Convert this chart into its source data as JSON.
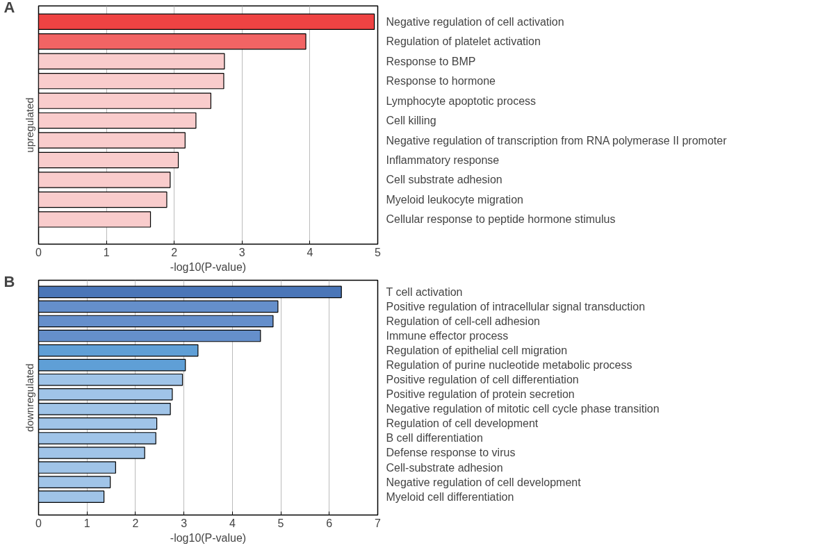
{
  "chart_data": [
    {
      "type": "bar",
      "orientation": "horizontal",
      "title": "A",
      "ylabel": "upregulated",
      "xlabel": "-log10(P-value)",
      "categories": [
        "Negative regulation of cell activation",
        "Regulation of platelet activation",
        "Response to BMP",
        "Response to hormone",
        "Lymphocyte apoptotic process",
        "Cell killing",
        "Negative regulation of transcription from RNA    polymerase II promoter",
        "Inflammatory response",
        "Cell substrate adhesion",
        "Myeloid leukocyte migration",
        "Cellular response to peptide hormone stimulus"
      ],
      "values": [
        4.95,
        3.94,
        2.74,
        2.73,
        2.54,
        2.32,
        2.16,
        2.06,
        1.94,
        1.89,
        1.65
      ],
      "colors": [
        "#ef4343",
        "#f26464",
        "#f9cccc",
        "#f9cccc",
        "#f9cccc",
        "#f9cccc",
        "#f9cccc",
        "#f9cccc",
        "#f9cccc",
        "#f9cccc",
        "#f9cccc"
      ],
      "xlim": [
        0,
        5
      ],
      "xticks": [
        0,
        1,
        2,
        3,
        4,
        5
      ],
      "grid": "x"
    },
    {
      "type": "bar",
      "orientation": "horizontal",
      "title": "B",
      "ylabel": "downregulated",
      "xlabel": "-log10(P-value)",
      "categories": [
        "T cell activation",
        "Positive regulation of intracellular signal transduction",
        "Regulation of cell-cell adhesion",
        "Immune effector process",
        "Regulation of epithelial cell migration",
        "Regulation of purine nucleotide metabolic process",
        "Positive regulation of cell differentiation",
        "Positive regulation of protein secretion",
        "Negative regulation of mitotic cell cycle phase transition",
        "Regulation of cell development",
        "B cell differentiation",
        "Defense response to virus",
        "Cell-substrate adhesion",
        "Negative regulation of cell development",
        "Myeloid cell differentiation"
      ],
      "values": [
        6.25,
        4.94,
        4.84,
        4.58,
        3.29,
        3.03,
        2.97,
        2.76,
        2.72,
        2.44,
        2.42,
        2.19,
        1.59,
        1.48,
        1.35
      ],
      "colors": [
        "#4a76b8",
        "#658fcb",
        "#658fcb",
        "#658fcb",
        "#5f9fd6",
        "#5f9fd6",
        "#a0c4e8",
        "#a0c4e8",
        "#a0c4e8",
        "#a0c4e8",
        "#a0c4e8",
        "#a0c4e8",
        "#a0c4e8",
        "#a0c4e8",
        "#a0c4e8"
      ],
      "xlim": [
        0,
        7
      ],
      "xticks": [
        0,
        1,
        2,
        3,
        4,
        5,
        6,
        7
      ],
      "grid": "x"
    }
  ]
}
